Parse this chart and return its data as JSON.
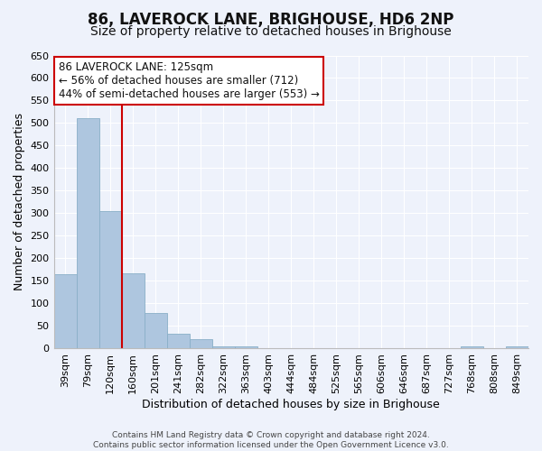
{
  "title": "86, LAVEROCK LANE, BRIGHOUSE, HD6 2NP",
  "subtitle": "Size of property relative to detached houses in Brighouse",
  "xlabel": "Distribution of detached houses by size in Brighouse",
  "ylabel": "Number of detached properties",
  "footer_line1": "Contains HM Land Registry data © Crown copyright and database right 2024.",
  "footer_line2": "Contains public sector information licensed under the Open Government Licence v3.0.",
  "categories": [
    "39sqm",
    "79sqm",
    "120sqm",
    "160sqm",
    "201sqm",
    "241sqm",
    "282sqm",
    "322sqm",
    "363sqm",
    "403sqm",
    "444sqm",
    "484sqm",
    "525sqm",
    "565sqm",
    "606sqm",
    "646sqm",
    "687sqm",
    "727sqm",
    "768sqm",
    "808sqm",
    "849sqm"
  ],
  "values": [
    165,
    510,
    305,
    167,
    79,
    33,
    20,
    5,
    4,
    0,
    0,
    0,
    0,
    0,
    0,
    0,
    0,
    0,
    4,
    0,
    4
  ],
  "bar_color": "#aec6df",
  "bar_edge_color": "#8aafc8",
  "background_color": "#eef2fb",
  "grid_color": "#ffffff",
  "ylim": [
    0,
    650
  ],
  "yticks": [
    0,
    50,
    100,
    150,
    200,
    250,
    300,
    350,
    400,
    450,
    500,
    550,
    600,
    650
  ],
  "vline_color": "#cc0000",
  "annotation_text": "86 LAVEROCK LANE: 125sqm\n← 56% of detached houses are smaller (712)\n44% of semi-detached houses are larger (553) →",
  "annotation_box_color": "#ffffff",
  "annotation_box_edge_color": "#cc0000",
  "title_fontsize": 12,
  "subtitle_fontsize": 10,
  "tick_fontsize": 8,
  "ylabel_fontsize": 9,
  "xlabel_fontsize": 9,
  "footer_fontsize": 6.5
}
